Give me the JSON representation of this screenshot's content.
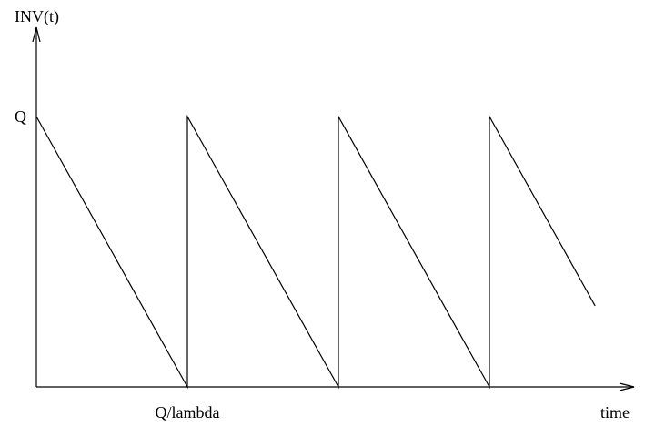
{
  "chart_data": {
    "type": "line",
    "title": "",
    "ylabel": "INV(t)",
    "xlabel": "time",
    "y_tick_label": "Q",
    "x_tick_label": "Q/lambda",
    "y_range": [
      0,
      1
    ],
    "x_range": [
      0,
      3.7
    ],
    "series": [
      {
        "x": [
          0,
          1,
          1,
          2,
          2,
          3,
          3,
          3.7
        ],
        "y": [
          1,
          0,
          1,
          0,
          1,
          0,
          1,
          0.3
        ]
      }
    ],
    "colors": {
      "line": "#000000",
      "axis": "#000000"
    }
  }
}
